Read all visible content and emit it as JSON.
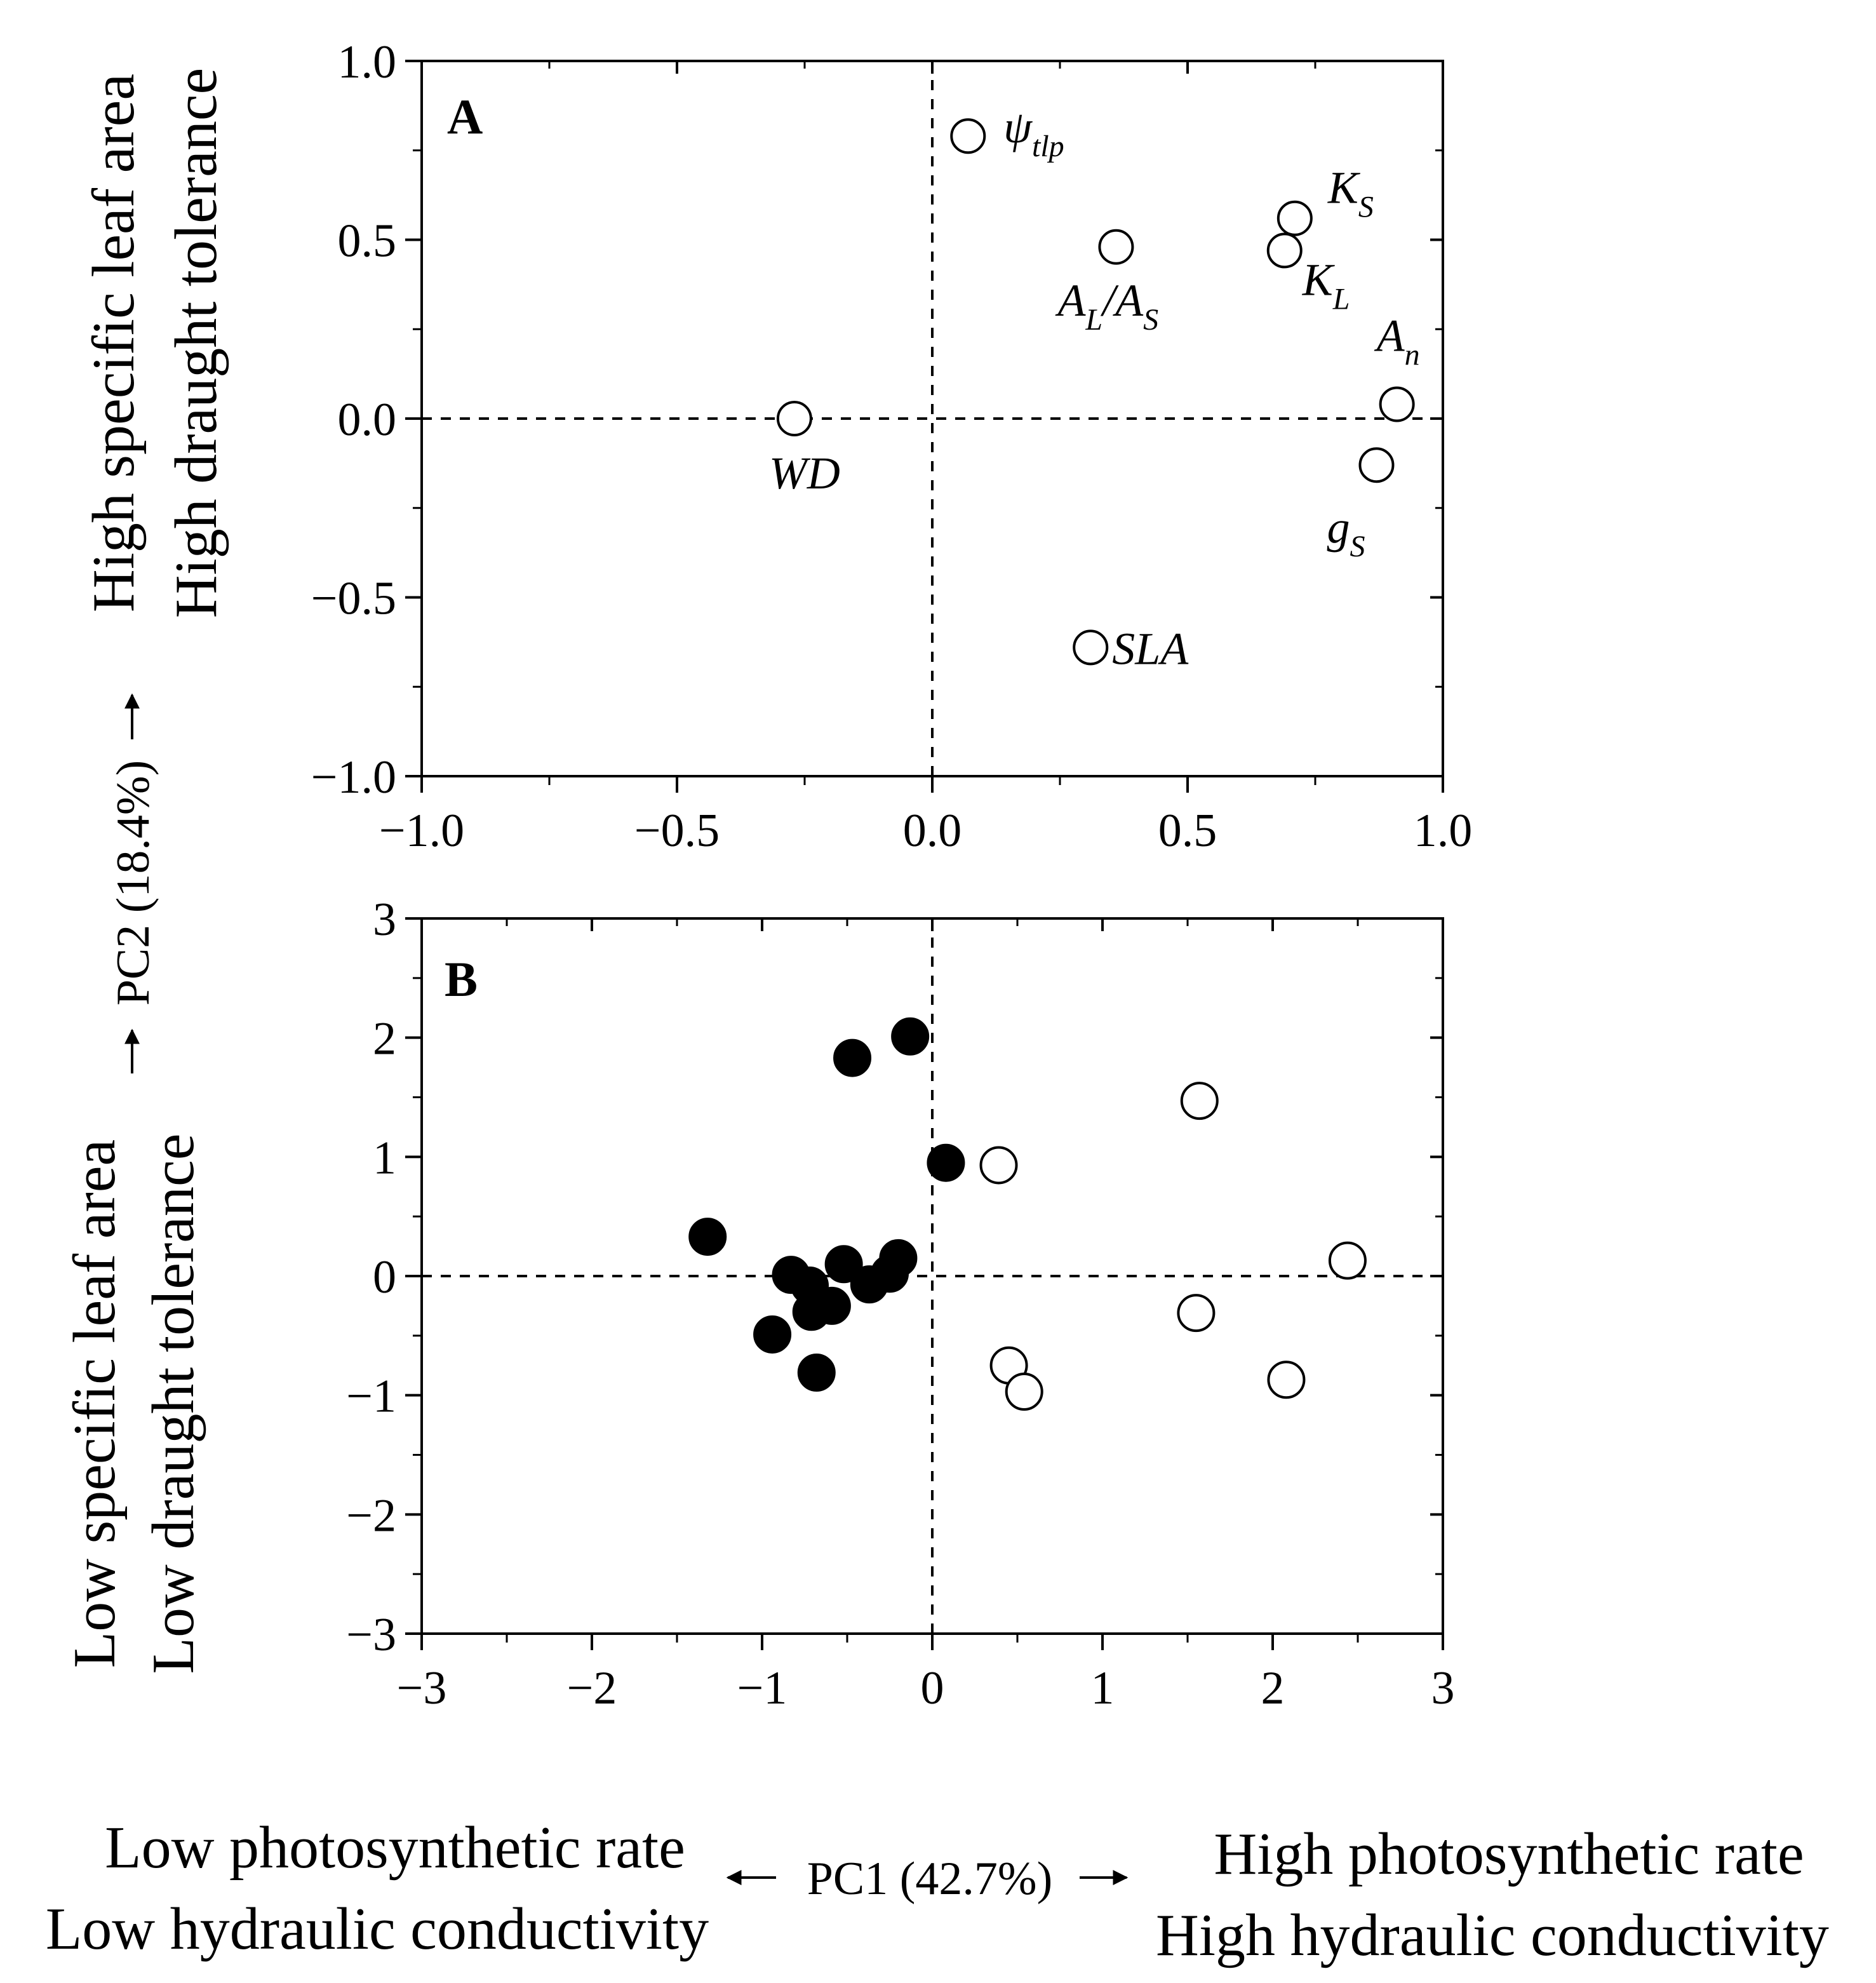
{
  "chart_data": [
    {
      "panel": "A",
      "type": "scatter",
      "panel_label": "A",
      "xlim": [
        -1.0,
        1.0
      ],
      "ylim": [
        -1.0,
        1.0
      ],
      "x_ticks": [
        "−1.0",
        "−0.5",
        "0.0",
        "0.5",
        "1.0"
      ],
      "y_ticks": [
        "1.0",
        "0.5",
        "0.0",
        "−0.5",
        "−1.0"
      ],
      "points": [
        {
          "name": "psi_tlp",
          "label": "ψ",
          "sub": "tlp",
          "x": 0.07,
          "y": 0.79,
          "filled": false
        },
        {
          "name": "KS",
          "label": "K",
          "sub": "S",
          "x": 0.71,
          "y": 0.56,
          "filled": false
        },
        {
          "name": "KL",
          "label": "K",
          "sub": "L",
          "x": 0.69,
          "y": 0.47,
          "filled": false
        },
        {
          "name": "AL_AS",
          "label": "A",
          "sub": "L",
          "label2": "/A",
          "sub2": "S",
          "x": 0.36,
          "y": 0.48,
          "filled": false
        },
        {
          "name": "An",
          "label": "A",
          "sub": "n",
          "x": 0.91,
          "y": 0.04,
          "filled": false
        },
        {
          "name": "gS",
          "label": "g",
          "sub": "S",
          "x": 0.87,
          "y": -0.13,
          "filled": false
        },
        {
          "name": "WD",
          "label": "WD",
          "sub": "",
          "x": -0.27,
          "y": 0.0,
          "filled": false
        },
        {
          "name": "SLA",
          "label": "SLA",
          "sub": "",
          "x": 0.31,
          "y": -0.64,
          "filled": false
        }
      ]
    },
    {
      "panel": "B",
      "type": "scatter",
      "panel_label": "B",
      "xlim": [
        -3,
        3
      ],
      "ylim": [
        -3,
        3
      ],
      "x_ticks": [
        "−3",
        "−2",
        "−1",
        "0",
        "1",
        "2",
        "3"
      ],
      "y_ticks": [
        "3",
        "2",
        "1",
        "0",
        "−1",
        "−2",
        "−3"
      ],
      "series": [
        {
          "name": "filled",
          "filled": true,
          "points": [
            [
              -0.13,
              2.01
            ],
            [
              -0.47,
              1.83
            ],
            [
              0.08,
              0.95
            ],
            [
              -1.32,
              0.33
            ],
            [
              -0.83,
              0.01
            ],
            [
              -0.52,
              0.1
            ],
            [
              -0.2,
              0.15
            ],
            [
              -0.25,
              0.02
            ],
            [
              -0.37,
              -0.07
            ],
            [
              -0.72,
              -0.08
            ],
            [
              -0.59,
              -0.25
            ],
            [
              -0.71,
              -0.3
            ],
            [
              -0.94,
              -0.49
            ],
            [
              -0.68,
              -0.81
            ]
          ]
        },
        {
          "name": "open",
          "filled": false,
          "points": [
            [
              1.57,
              1.47
            ],
            [
              0.39,
              0.93
            ],
            [
              2.44,
              0.13
            ],
            [
              1.55,
              -0.31
            ],
            [
              0.45,
              -0.75
            ],
            [
              0.54,
              -0.97
            ],
            [
              2.08,
              -0.87
            ]
          ]
        }
      ]
    }
  ],
  "axes_text": {
    "y_high_1": "High  specific leaf area",
    "y_high_2": "High draught tolerance",
    "y_pc": "PC2 (18.4%)",
    "y_low_1": "Low  specific leaf area",
    "y_low_2": "Low draught tolerance",
    "x_low_1": "Low photosynthetic rate",
    "x_low_2": "Low hydraulic conductivity",
    "x_pc": "PC1 (42.7%)",
    "x_high_1": "High photosynthetic rate",
    "x_high_2": "High hydraulic conductivity"
  }
}
